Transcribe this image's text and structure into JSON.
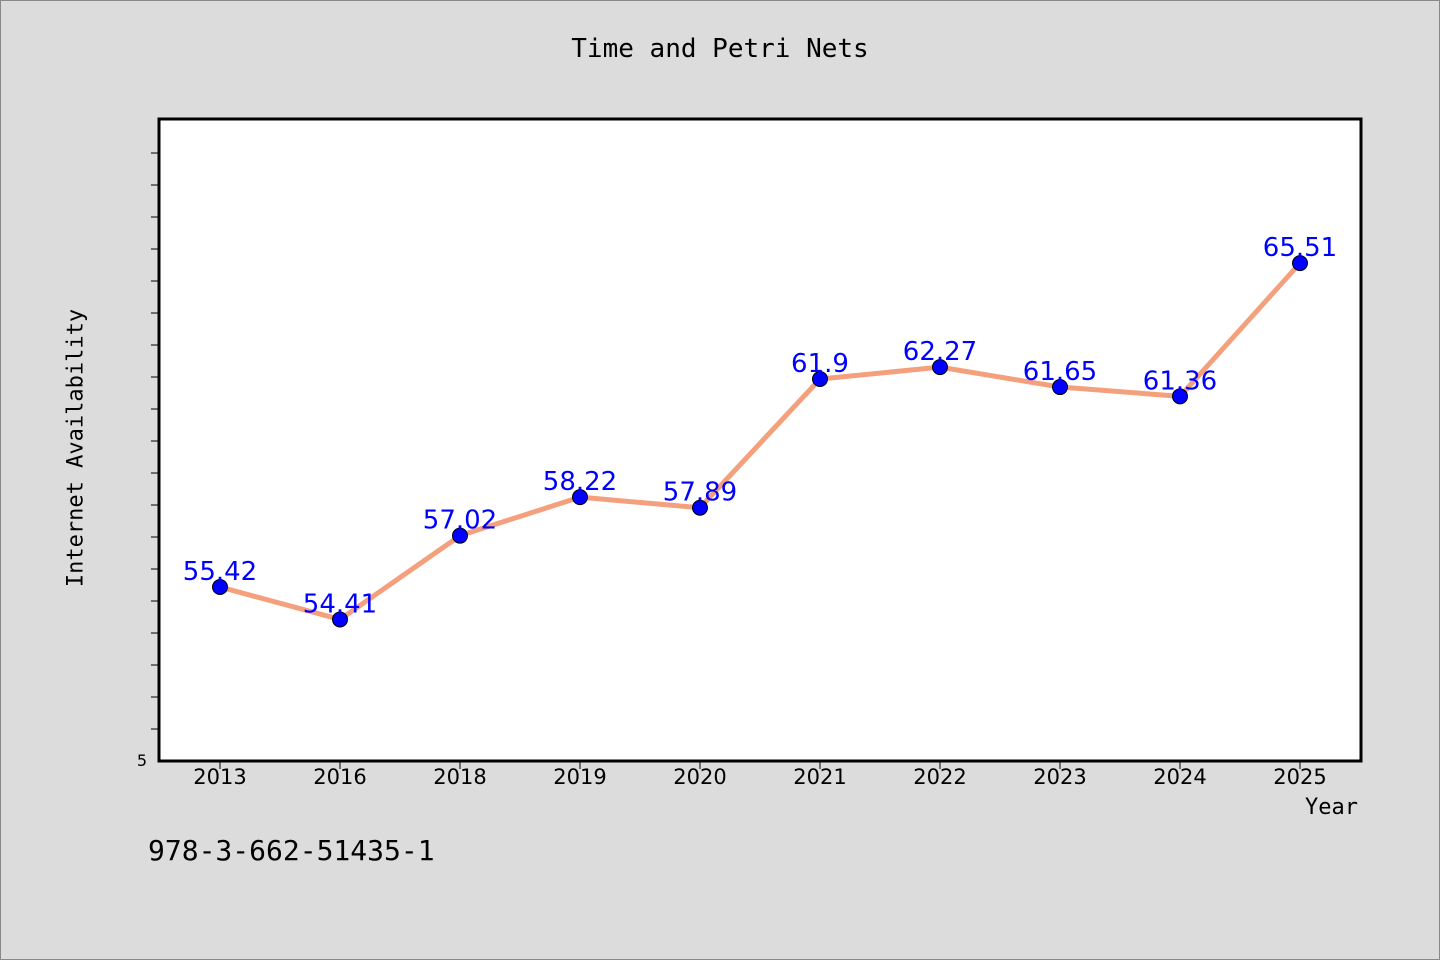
{
  "chart_data": {
    "type": "line",
    "title": "Time and Petri Nets",
    "xlabel": "Year",
    "ylabel": "Internet Availability",
    "categories": [
      "2013",
      "2016",
      "2018",
      "2019",
      "2020",
      "2021",
      "2022",
      "2023",
      "2024",
      "2025"
    ],
    "series": [
      {
        "values": [
          55.42,
          54.41,
          57.02,
          58.22,
          57.89,
          61.9,
          62.27,
          61.65,
          61.36,
          65.51
        ],
        "line_color": "#f4a07c",
        "marker_color": "#0000ff",
        "label_color": "#0000ff"
      }
    ],
    "y_tick_label": "5",
    "ylim": [
      50,
      70
    ],
    "grid": false,
    "background": "#dcdcdc",
    "plot_background": "#ffffff"
  },
  "footer": {
    "code": "978-3-662-51435-1"
  }
}
